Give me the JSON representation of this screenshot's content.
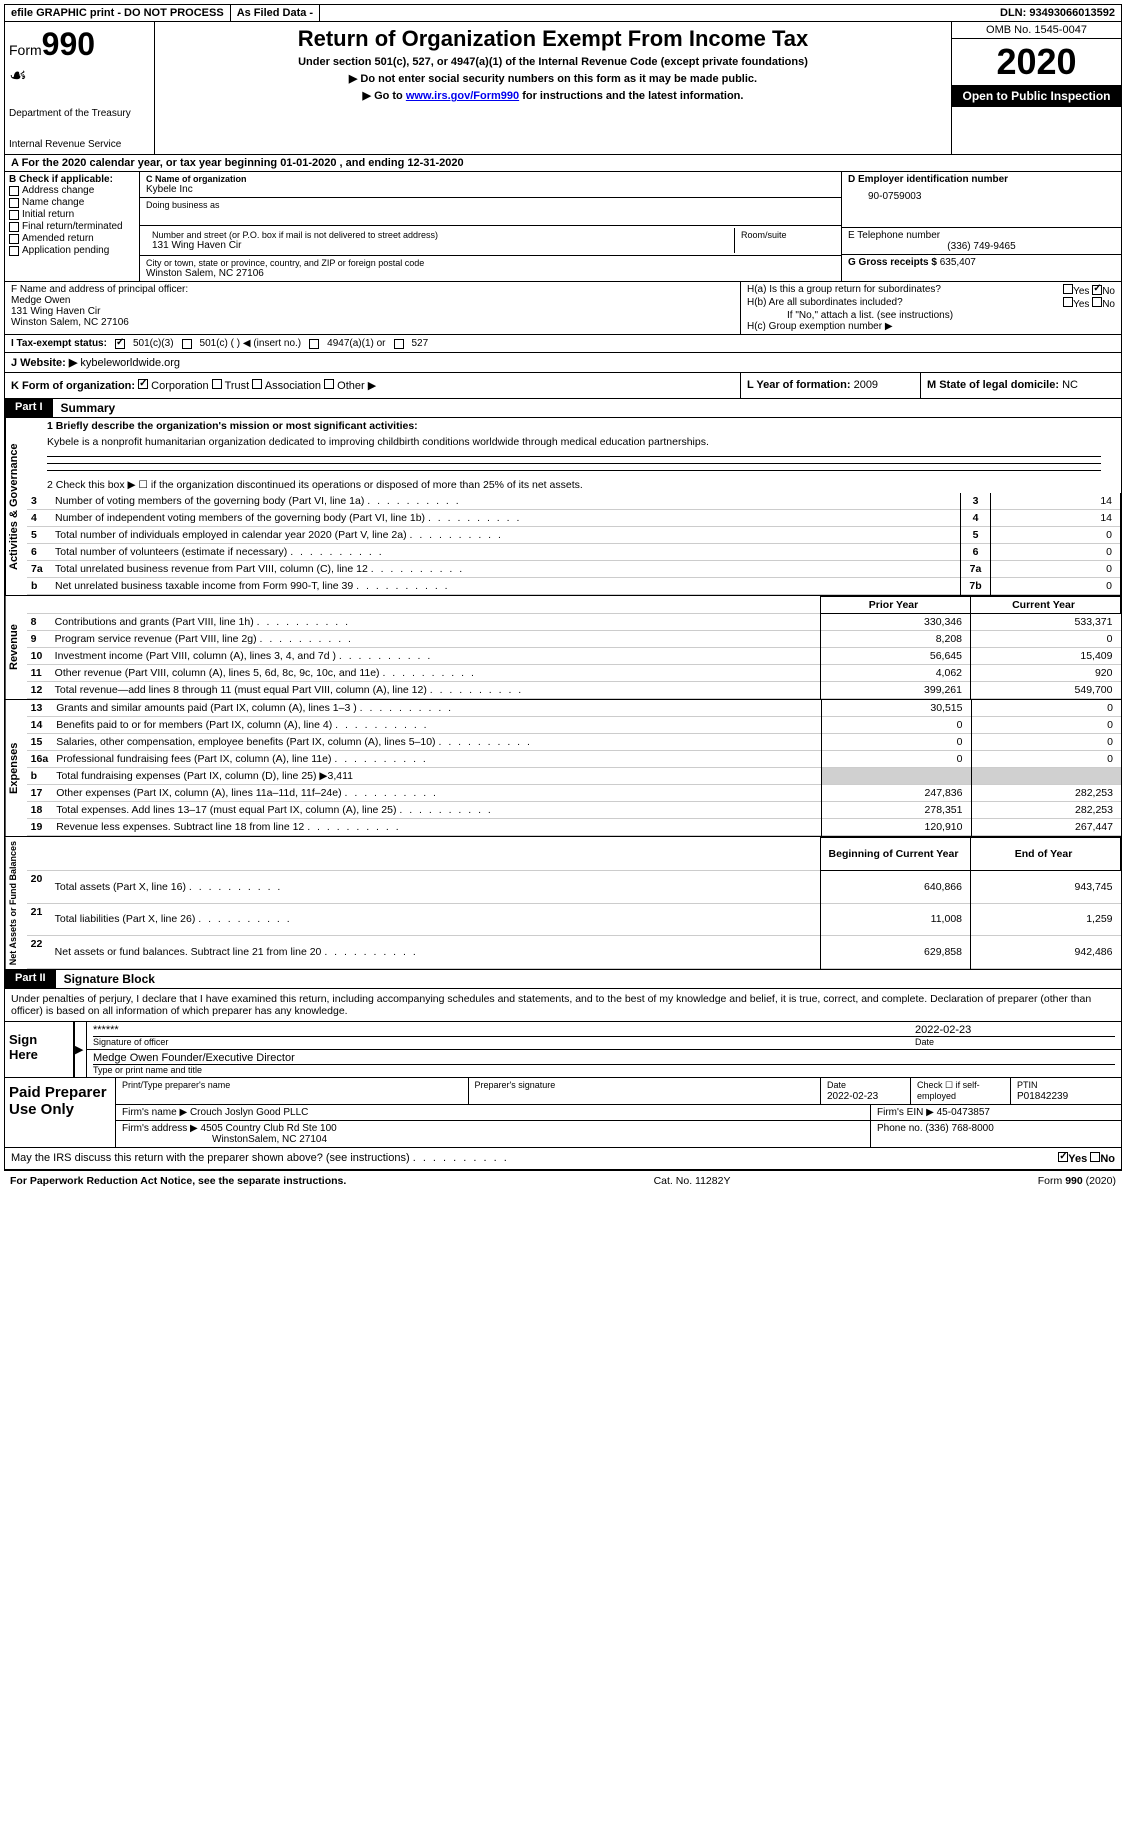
{
  "top": {
    "efile": "efile GRAPHIC print - DO NOT PROCESS",
    "asFiled": "As Filed Data -",
    "dln": "DLN: 93493066013592"
  },
  "header": {
    "formWord": "Form",
    "formNum": "990",
    "dept": "Department of the Treasury",
    "irs": "Internal Revenue Service",
    "title": "Return of Organization Exempt From Income Tax",
    "sub1": "Under section 501(c), 527, or 4947(a)(1) of the Internal Revenue Code (except private foundations)",
    "sub2": "▶ Do not enter social security numbers on this form as it may be made public.",
    "sub3": "▶ Go to www.irs.gov/Form990 for instructions and the latest information.",
    "link": "www.irs.gov/Form990",
    "omb": "OMB No. 1545-0047",
    "year": "2020",
    "inspection": "Open to Public Inspection"
  },
  "rowA": "A   For the 2020 calendar year, or tax year beginning 01-01-2020   , and ending 12-31-2020",
  "sectionB": {
    "title": "B Check if applicable:",
    "items": [
      "Address change",
      "Name change",
      "Initial return",
      "Final return/terminated",
      "Amended return",
      "Application pending"
    ]
  },
  "sectionC": {
    "nameLabel": "C Name of organization",
    "name": "Kybele Inc",
    "dbaLabel": "Doing business as",
    "dba": "",
    "addrLabel": "Number and street (or P.O. box if mail is not delivered to street address)",
    "addr": "131 Wing Haven Cir",
    "roomLabel": "Room/suite",
    "cityLabel": "City or town, state or province, country, and ZIP or foreign postal code",
    "city": "Winston Salem, NC  27106"
  },
  "sectionD": {
    "einLabel": "D Employer identification number",
    "ein": "90-0759003",
    "phoneLabel": "E Telephone number",
    "phone": "(336) 749-9465",
    "grossLabel": "G Gross receipts $",
    "gross": "635,407"
  },
  "sectionF": {
    "label": "F  Name and address of principal officer:",
    "name": "Medge Owen",
    "addr1": "131 Wing Haven Cir",
    "addr2": "Winston Salem, NC  27106"
  },
  "sectionH": {
    "ha": "H(a)  Is this a group return for subordinates?",
    "hb": "H(b)  Are all subordinates included?",
    "hbNote": "If \"No,\" attach a list. (see instructions)",
    "hc": "H(c)  Group exemption number ▶",
    "yes": "Yes",
    "no": "No"
  },
  "rowI": {
    "label": "I   Tax-exempt status:",
    "opt1": "501(c)(3)",
    "opt2": "501(c) (   ) ◀ (insert no.)",
    "opt3": "4947(a)(1) or",
    "opt4": "527"
  },
  "rowJ": {
    "label": "J   Website: ▶",
    "value": "kybeleworldwide.org"
  },
  "rowK": {
    "label": "K Form of organization:",
    "opts": [
      "Corporation",
      "Trust",
      "Association",
      "Other ▶"
    ]
  },
  "rowL": {
    "label": "L Year of formation:",
    "value": "2009"
  },
  "rowM": {
    "label": "M State of legal domicile:",
    "value": "NC"
  },
  "partI": {
    "label": "Part I",
    "title": "Summary",
    "line1Label": "1 Briefly describe the organization's mission or most significant activities:",
    "mission": "Kybele is a nonprofit humanitarian organization dedicated to improving childbirth conditions worldwide through medical education partnerships.",
    "line2": "2   Check this box ▶ ☐ if the organization discontinued its operations or disposed of more than 25% of its net assets."
  },
  "govLines": [
    {
      "n": "3",
      "t": "Number of voting members of the governing body (Part VI, line 1a)",
      "b": "3",
      "v": "14"
    },
    {
      "n": "4",
      "t": "Number of independent voting members of the governing body (Part VI, line 1b)",
      "b": "4",
      "v": "14"
    },
    {
      "n": "5",
      "t": "Total number of individuals employed in calendar year 2020 (Part V, line 2a)",
      "b": "5",
      "v": "0"
    },
    {
      "n": "6",
      "t": "Total number of volunteers (estimate if necessary)",
      "b": "6",
      "v": "0"
    },
    {
      "n": "7a",
      "t": "Total unrelated business revenue from Part VIII, column (C), line 12",
      "b": "7a",
      "v": "0"
    },
    {
      "n": "b",
      "t": "Net unrelated business taxable income from Form 990-T, line 39",
      "b": "7b",
      "v": "0"
    }
  ],
  "colHeaders": {
    "prior": "Prior Year",
    "current": "Current Year",
    "begin": "Beginning of Current Year",
    "end": "End of Year"
  },
  "revenue": [
    {
      "n": "8",
      "t": "Contributions and grants (Part VIII, line 1h)",
      "p": "330,346",
      "c": "533,371"
    },
    {
      "n": "9",
      "t": "Program service revenue (Part VIII, line 2g)",
      "p": "8,208",
      "c": "0"
    },
    {
      "n": "10",
      "t": "Investment income (Part VIII, column (A), lines 3, 4, and 7d )",
      "p": "56,645",
      "c": "15,409"
    },
    {
      "n": "11",
      "t": "Other revenue (Part VIII, column (A), lines 5, 6d, 8c, 9c, 10c, and 11e)",
      "p": "4,062",
      "c": "920"
    },
    {
      "n": "12",
      "t": "Total revenue—add lines 8 through 11 (must equal Part VIII, column (A), line 12)",
      "p": "399,261",
      "c": "549,700"
    }
  ],
  "expenses": [
    {
      "n": "13",
      "t": "Grants and similar amounts paid (Part IX, column (A), lines 1–3 )",
      "p": "30,515",
      "c": "0"
    },
    {
      "n": "14",
      "t": "Benefits paid to or for members (Part IX, column (A), line 4)",
      "p": "0",
      "c": "0"
    },
    {
      "n": "15",
      "t": "Salaries, other compensation, employee benefits (Part IX, column (A), lines 5–10)",
      "p": "0",
      "c": "0"
    },
    {
      "n": "16a",
      "t": "Professional fundraising fees (Part IX, column (A), line 11e)",
      "p": "0",
      "c": "0"
    },
    {
      "n": "b",
      "t": "Total fundraising expenses (Part IX, column (D), line 25) ▶3,411",
      "p": "",
      "c": "",
      "gray": true
    },
    {
      "n": "17",
      "t": "Other expenses (Part IX, column (A), lines 11a–11d, 11f–24e)",
      "p": "247,836",
      "c": "282,253"
    },
    {
      "n": "18",
      "t": "Total expenses. Add lines 13–17 (must equal Part IX, column (A), line 25)",
      "p": "278,351",
      "c": "282,253"
    },
    {
      "n": "19",
      "t": "Revenue less expenses. Subtract line 18 from line 12",
      "p": "120,910",
      "c": "267,447"
    }
  ],
  "netAssets": [
    {
      "n": "20",
      "t": "Total assets (Part X, line 16)",
      "p": "640,866",
      "c": "943,745"
    },
    {
      "n": "21",
      "t": "Total liabilities (Part X, line 26)",
      "p": "11,008",
      "c": "1,259"
    },
    {
      "n": "22",
      "t": "Net assets or fund balances. Subtract line 21 from line 20",
      "p": "629,858",
      "c": "942,486"
    }
  ],
  "vertLabels": {
    "gov": "Activities & Governance",
    "rev": "Revenue",
    "exp": "Expenses",
    "net": "Net Assets or Fund Balances"
  },
  "partII": {
    "label": "Part II",
    "title": "Signature Block",
    "perjury": "Under penalties of perjury, I declare that I have examined this return, including accompanying schedules and statements, and to the best of my knowledge and belief, it is true, correct, and complete. Declaration of preparer (other than officer) is based on all information of which preparer has any knowledge."
  },
  "sign": {
    "label": "Sign Here",
    "stars": "******",
    "sigLabel": "Signature of officer",
    "date": "2022-02-23",
    "dateLabel": "Date",
    "name": "Medge Owen  Founder/Executive Director",
    "nameLabel": "Type or print name and title"
  },
  "preparer": {
    "label": "Paid Preparer Use Only",
    "nameLabel": "Print/Type preparer's name",
    "sigLabel": "Preparer's signature",
    "dateLabel": "Date",
    "date": "2022-02-23",
    "checkLabel": "Check ☐ if self-employed",
    "ptinLabel": "PTIN",
    "ptin": "P01842239",
    "firmLabel": "Firm's name    ▶",
    "firm": "Crouch Joslyn Good PLLC",
    "firmEinLabel": "Firm's EIN ▶",
    "firmEin": "45-0473857",
    "firmAddrLabel": "Firm's address ▶",
    "firmAddr1": "4505 Country Club Rd Ste 100",
    "firmAddr2": "WinstonSalem, NC  27104",
    "phoneLabel": "Phone no.",
    "phone": "(336) 768-8000"
  },
  "discuss": "May the IRS discuss this return with the preparer shown above? (see instructions)",
  "footer": {
    "left": "For Paperwork Reduction Act Notice, see the separate instructions.",
    "mid": "Cat. No. 11282Y",
    "right": "Form 990 (2020)"
  }
}
